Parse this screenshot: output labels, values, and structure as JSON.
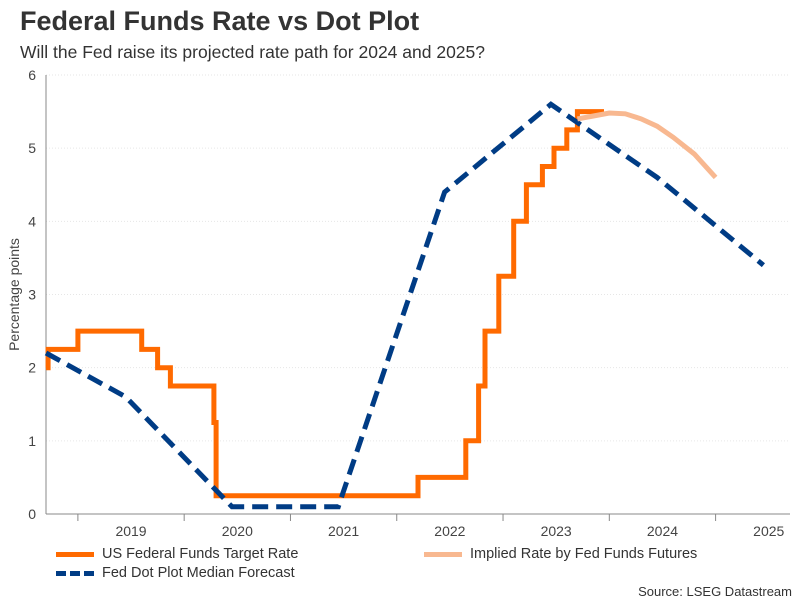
{
  "title": "Federal Funds Rate vs Dot Plot",
  "subtitle": "Will the Fed raise its projected rate path for 2024 and 2025?",
  "source": "Source: LSEG Datastream",
  "chart_data": {
    "type": "line",
    "ylabel": "Percentage points",
    "xlabel": "",
    "ylim": [
      0,
      6
    ],
    "yticks": [
      0,
      1,
      2,
      3,
      4,
      5,
      6
    ],
    "xlim": [
      2018.2,
      2025.2
    ],
    "xticks": [
      {
        "label": "2019",
        "value": 2019.0
      },
      {
        "label": "2020",
        "value": 2020.0
      },
      {
        "label": "2021",
        "value": 2021.0
      },
      {
        "label": "2022",
        "value": 2022.0
      },
      {
        "label": "2023",
        "value": 2023.0
      },
      {
        "label": "2024",
        "value": 2024.0
      },
      {
        "label": "2025",
        "value": 2025.0
      }
    ],
    "grid": true,
    "legend_position": "bottom",
    "series": [
      {
        "name": "US Federal Funds Target Rate",
        "color": "#ff6a00",
        "style": "solid",
        "step": true,
        "x": [
          2018.2,
          2018.22,
          2018.5,
          2019.1,
          2019.25,
          2019.37,
          2019.45,
          2019.78,
          2019.8,
          2021.0,
          2021.7,
          2022.15,
          2022.27,
          2022.33,
          2022.46,
          2022.6,
          2022.72,
          2022.87,
          2022.98,
          2023.1,
          2023.2,
          2023.35,
          2023.45
        ],
        "y": [
          2.0,
          2.25,
          2.5,
          2.25,
          2.0,
          1.75,
          1.75,
          1.25,
          0.25,
          0.25,
          0.5,
          1.0,
          1.75,
          2.5,
          3.25,
          4.0,
          4.5,
          4.75,
          5.0,
          5.25,
          5.5,
          5.5,
          5.5
        ]
      },
      {
        "name": "Fed Dot Plot Median Forecast",
        "color": "#003c85",
        "style": "dashed",
        "x": [
          2018.2,
          2018.95,
          2019.95,
          2020.95,
          2021.95,
          2022.95,
          2023.95,
          2024.95
        ],
        "y": [
          2.2,
          1.6,
          0.1,
          0.1,
          4.4,
          5.6,
          4.6,
          3.4
        ]
      },
      {
        "name": "Implied Rate by Fed Funds Futures",
        "color": "#f8b890",
        "style": "solid",
        "x": [
          2023.2,
          2023.35,
          2023.5,
          2023.65,
          2023.8,
          2023.95,
          2024.1,
          2024.3,
          2024.5
        ],
        "y": [
          5.4,
          5.44,
          5.48,
          5.47,
          5.4,
          5.3,
          5.15,
          4.92,
          4.6
        ]
      }
    ]
  }
}
